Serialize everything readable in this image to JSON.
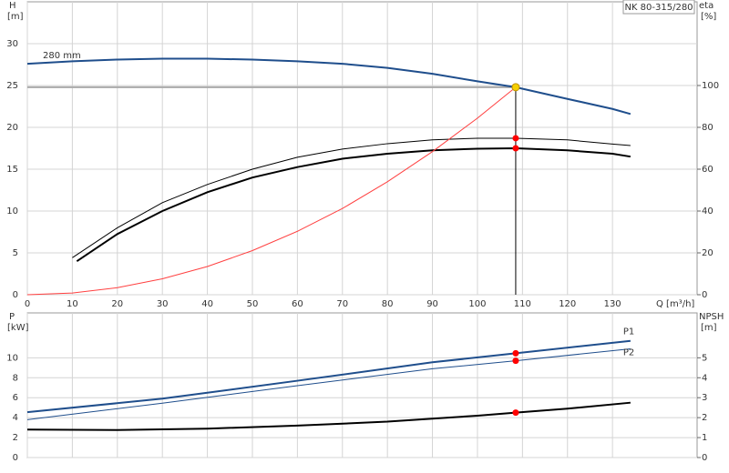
{
  "chart_data": [
    {
      "type": "line",
      "title": "NK 80-315/280",
      "xlabel": "Q [m³/h]",
      "ylabel": "H",
      "yunit": "[m]",
      "y2label": "eta",
      "y2unit": "[%]",
      "xlim": [
        0,
        148.8
      ],
      "xticks": [
        0,
        10,
        20,
        30,
        40,
        50,
        60,
        70,
        80,
        90,
        100,
        110,
        120,
        130
      ],
      "show_xtick_labels": true,
      "ylim": [
        0,
        35
      ],
      "yticks": [
        0,
        5,
        10,
        15,
        20,
        25,
        30
      ],
      "y2lim": [
        0,
        140
      ],
      "y2ticks": [
        0,
        20,
        40,
        60,
        80,
        100
      ],
      "grid": true,
      "operating_point": {
        "x": 108.5,
        "y": 24.8,
        "color": "#f5d000"
      },
      "series": [
        {
          "name": "280 mm",
          "color": "#1f4e8c",
          "width": 2,
          "label_at": "start",
          "mark_operating": false,
          "x": [
            0,
            10,
            20,
            30,
            40,
            50,
            60,
            70,
            80,
            90,
            100,
            108.5,
            120,
            130,
            134
          ],
          "values": [
            27.6,
            27.9,
            28.1,
            28.2,
            28.2,
            28.1,
            27.9,
            27.6,
            27.1,
            26.4,
            25.5,
            24.8,
            23.4,
            22.2,
            21.6
          ]
        },
        {
          "color": "#000000",
          "width": 2,
          "axis": "y2",
          "mark_operating": true,
          "x": [
            11,
            20,
            30,
            40,
            50,
            60,
            70,
            80,
            90,
            100,
            108.5,
            120,
            130,
            134
          ],
          "values": [
            16,
            29,
            40,
            49,
            56,
            61,
            65,
            67.4,
            69,
            69.8,
            70,
            69,
            67.4,
            66
          ]
        },
        {
          "color": "#000000",
          "width": 1,
          "axis": "y2",
          "mark_operating": true,
          "x": [
            10,
            20,
            30,
            40,
            50,
            60,
            70,
            80,
            90,
            100,
            108.5,
            120,
            130,
            134
          ],
          "values": [
            17.7,
            32,
            44,
            52.7,
            60,
            65.7,
            69.6,
            72.2,
            74,
            74.8,
            74.8,
            74,
            72,
            71.3
          ]
        },
        {
          "color": "#ff4040",
          "width": 1,
          "mark_operating": false,
          "x": [
            0,
            10,
            20,
            30,
            40,
            50,
            60,
            70,
            80,
            90,
            100,
            108.5
          ],
          "values": [
            0,
            0.21,
            0.84,
            1.9,
            3.37,
            5.27,
            7.58,
            10.3,
            13.5,
            17.1,
            21.1,
            24.8
          ]
        }
      ]
    },
    {
      "type": "line",
      "ylabel": "P",
      "yunit": "[kW]",
      "y2label": "NPSH",
      "y2unit": "[m]",
      "xlim": [
        0,
        148.8
      ],
      "xticks": [
        0,
        10,
        20,
        30,
        40,
        50,
        60,
        70,
        80,
        90,
        100,
        110,
        120,
        130
      ],
      "show_xtick_labels": false,
      "ylim": [
        0,
        14.5
      ],
      "yticks": [
        0,
        2,
        4,
        6,
        8,
        10
      ],
      "y2lim": [
        0,
        7.25
      ],
      "y2ticks": [
        0,
        1,
        2,
        3,
        4,
        5
      ],
      "grid": true,
      "series": [
        {
          "name": "P1",
          "color": "#1f4e8c",
          "width": 2,
          "label_at": "end",
          "mark_operating": true,
          "x": [
            0,
            30,
            60,
            90,
            108.5,
            134
          ],
          "values": [
            4.55,
            5.9,
            7.7,
            9.55,
            10.45,
            11.7
          ]
        },
        {
          "name": "P2",
          "color": "#1f4e8c",
          "width": 1,
          "label_at": "end",
          "mark_operating": true,
          "x": [
            0,
            30,
            60,
            90,
            108.5,
            134
          ],
          "values": [
            3.8,
            5.45,
            7.2,
            8.9,
            9.7,
            10.9
          ]
        },
        {
          "color": "#000000",
          "width": 2,
          "axis": "y2",
          "mark_operating": true,
          "x": [
            0,
            20,
            40,
            60,
            80,
            100,
            108.5,
            120,
            134
          ],
          "values": [
            1.4,
            1.38,
            1.45,
            1.6,
            1.8,
            2.1,
            2.25,
            2.45,
            2.75
          ]
        }
      ]
    }
  ]
}
